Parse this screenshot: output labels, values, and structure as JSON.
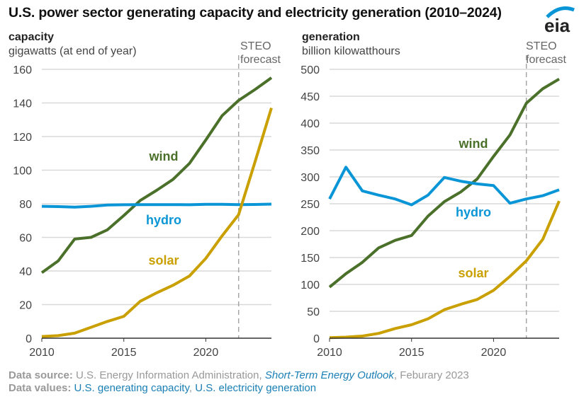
{
  "title": "U.S. power sector generating capacity and electricity generation (2010–2024)",
  "logo_text": "eia",
  "colors": {
    "wind": "#4a702a",
    "hydro": "#0a96d6",
    "solar": "#c9a000",
    "grid": "#d9d9d9",
    "forecast_line": "#a6a6a6"
  },
  "footer": {
    "source_label": "Data source:",
    "source_text": "U.S. Energy Information Administration,",
    "source_link": "Short-Term Energy Outlook",
    "source_date": ", Feburary 2023",
    "values_label": "Data values:",
    "values_link1": "U.S. generating capacity",
    "values_sep": ",",
    "values_link2": "U.S. electricity generation"
  },
  "chart_data": [
    {
      "type": "line",
      "title": "capacity",
      "ylabel": "gigawatts (at end of year)",
      "forecast_label": [
        "STEO",
        "forecast"
      ],
      "forecast_start": 2022,
      "xlim": [
        2010,
        2024
      ],
      "ylim": [
        0,
        160
      ],
      "xticks": [
        2010,
        2015,
        2020
      ],
      "yticks": [
        0,
        20,
        40,
        60,
        80,
        100,
        120,
        140,
        160
      ],
      "grid": true,
      "x": [
        2010,
        2011,
        2012,
        2013,
        2014,
        2015,
        2016,
        2017,
        2018,
        2019,
        2020,
        2021,
        2022,
        2023,
        2024
      ],
      "series": [
        {
          "name": "wind",
          "values": [
            39,
            46,
            59,
            60,
            64.5,
            73,
            82,
            88,
            94.5,
            104,
            118,
            132.5,
            141.5,
            148,
            155
          ]
        },
        {
          "name": "hydro",
          "values": [
            78.5,
            78.3,
            78,
            78.5,
            79.3,
            79.4,
            79.5,
            79.5,
            79.5,
            79.4,
            79.7,
            79.7,
            79.5,
            79.6,
            79.8
          ]
        },
        {
          "name": "solar",
          "values": [
            1,
            1.5,
            3,
            6.5,
            10,
            13,
            22,
            27,
            31.5,
            37,
            47.5,
            61,
            73.5,
            105,
            137
          ]
        }
      ]
    },
    {
      "type": "line",
      "title": "generation",
      "ylabel": "billion kilowatthours",
      "forecast_label": [
        "STEO",
        "forecast"
      ],
      "forecast_start": 2022,
      "xlim": [
        2010,
        2024
      ],
      "ylim": [
        0,
        500
      ],
      "xticks": [
        2010,
        2015,
        2020
      ],
      "yticks": [
        0,
        50,
        100,
        150,
        200,
        250,
        300,
        350,
        400,
        450,
        500
      ],
      "grid": true,
      "x": [
        2010,
        2011,
        2012,
        2013,
        2014,
        2015,
        2016,
        2017,
        2018,
        2019,
        2020,
        2021,
        2022,
        2023,
        2024
      ],
      "series": [
        {
          "name": "wind",
          "values": [
            95,
            120,
            141,
            168,
            182,
            191,
            227,
            254,
            272,
            296,
            338,
            378,
            437,
            464,
            482
          ]
        },
        {
          "name": "hydro",
          "values": [
            259,
            318,
            274,
            266,
            259,
            248,
            266,
            299,
            292,
            287,
            284,
            251,
            259,
            265,
            276
          ]
        },
        {
          "name": "solar",
          "values": [
            1,
            2,
            4,
            9,
            18,
            25,
            36,
            53,
            63,
            72,
            89,
            115,
            144,
            184,
            255
          ]
        }
      ]
    }
  ]
}
